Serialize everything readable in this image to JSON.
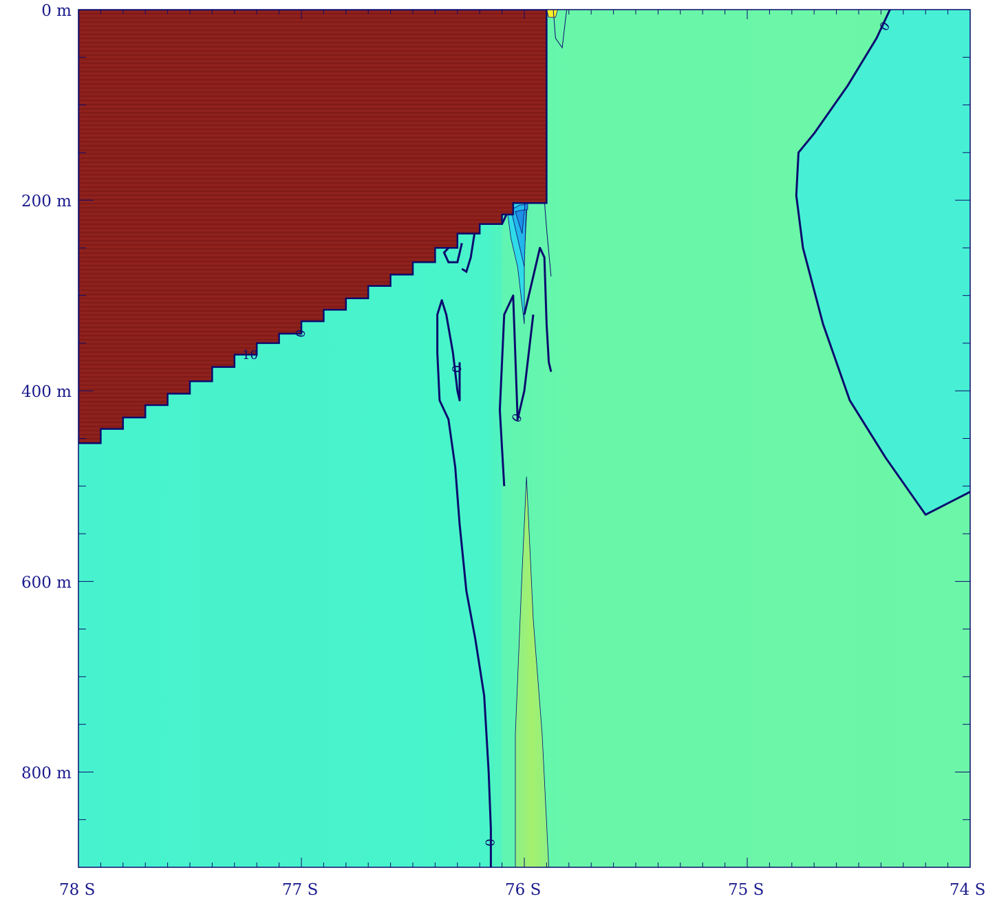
{
  "chart_data": {
    "type": "contour",
    "title": "",
    "xlabel": "",
    "ylabel": "",
    "x_axis": {
      "ticks": [
        -78,
        -77,
        -76,
        -75,
        -74
      ],
      "tick_labels": [
        "78  S",
        "77  S",
        "76  S",
        "75  S",
        "74  S"
      ],
      "range": [
        -78,
        -74
      ],
      "minor_step": 0.1
    },
    "y_axis": {
      "ticks": [
        0,
        200,
        400,
        600,
        800
      ],
      "tick_labels": [
        "0  m",
        "200  m",
        "400  m",
        "600  m",
        "800  m"
      ],
      "range": [
        0,
        900
      ],
      "inverted": true,
      "minor_step": 50
    },
    "contour_labels": [
      {
        "text": "0",
        "lat": -74.38,
        "depth": 18,
        "rotate": -55
      },
      {
        "text": "0",
        "lat": -76.3,
        "depth": 377,
        "rotate": -90
      },
      {
        "text": "0",
        "lat": -76.03,
        "depth": 429,
        "rotate": -60
      },
      {
        "text": "0",
        "lat": -76.15,
        "depth": 874,
        "rotate": -90
      },
      {
        "text": "10",
        "lat": -77.23,
        "depth": 363,
        "rotate": 0
      },
      {
        "text": "0",
        "lat": -77.0,
        "depth": 340,
        "rotate": -80
      }
    ],
    "zero_contours": [
      {
        "lat": [
          -76.15,
          -76.15,
          -76.16,
          -76.18,
          -76.22,
          -76.26,
          -76.29,
          -76.31,
          -76.34,
          -76.38,
          -76.39,
          -76.39,
          -76.37,
          -76.35,
          -76.32,
          -76.3,
          -76.29,
          -76.29
        ],
        "depth": [
          900,
          860,
          800,
          720,
          660,
          610,
          540,
          480,
          430,
          410,
          360,
          320,
          305,
          320,
          360,
          400,
          410,
          370
        ]
      },
      {
        "lat": [
          -76.09,
          -76.1,
          -76.11,
          -76.1,
          -76.09,
          -76.05,
          -76.03,
          -76.0,
          -75.98,
          -75.96
        ],
        "depth": [
          500,
          460,
          420,
          370,
          320,
          300,
          430,
          400,
          360,
          320
        ]
      },
      {
        "lat": [
          -76.0,
          -75.96,
          -75.93,
          -75.91,
          -75.9,
          -75.89,
          -75.88
        ],
        "depth": [
          320,
          280,
          250,
          260,
          330,
          370,
          380
        ]
      },
      {
        "lat": [
          -74.36,
          -74.42,
          -74.55,
          -74.7,
          -74.77,
          -74.78,
          -74.75,
          -74.66,
          -74.54,
          -74.38,
          -74.2,
          -74.0
        ],
        "depth": [
          0,
          30,
          80,
          130,
          150,
          195,
          250,
          330,
          410,
          470,
          530,
          506
        ]
      }
    ],
    "colorbands": [
      {
        "name": "ice-shelf",
        "color": "#8a1e1a"
      },
      {
        "name": "background",
        "color": "#49f3cc"
      },
      {
        "name": "east",
        "color": "#6cf6a8"
      },
      {
        "name": "plume",
        "color": "#9af27a"
      },
      {
        "name": "negative-weak",
        "color": "#30dbe8"
      },
      {
        "name": "negative-mid",
        "color": "#1d8fe6"
      },
      {
        "name": "negative-strong",
        "color": "#1f3fcf"
      },
      {
        "name": "positive-strong",
        "color": "#f7f02a"
      }
    ],
    "colors": {
      "frame": "#0b0b6e",
      "tick_label": "#1a1a8c"
    }
  }
}
